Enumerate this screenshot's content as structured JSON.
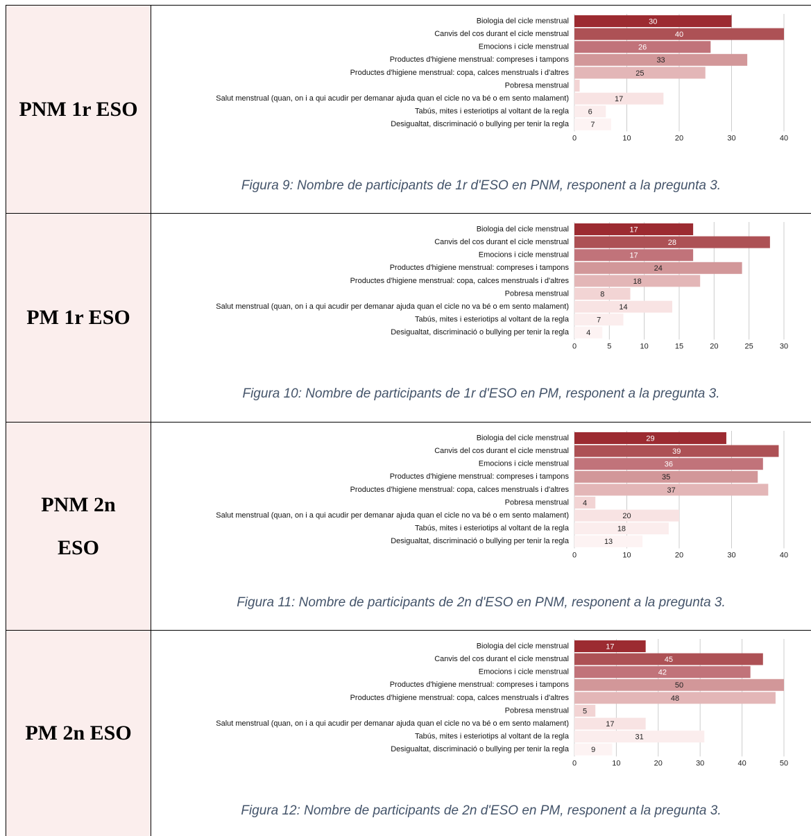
{
  "table": {
    "row_labels": [
      "PNM 1r ESO",
      "PM 1r ESO",
      "PNM 2n ESO",
      "PM 2n ESO"
    ]
  },
  "chart_data": [
    {
      "type": "bar",
      "orientation": "horizontal",
      "categories": [
        "Biologia del cicle menstrual",
        "Canvis del cos durant el cicle menstrual",
        "Emocions i cicle menstrual",
        "Productes d'higiene menstrual: compreses i tampons",
        "Productes d'higiene menstrual: copa, calces menstruals i d'altres",
        "Pobresa menstrual",
        "Salut menstrual (quan, on i a qui acudir per demanar ajuda quan el cicle no va bé o em sento malament)",
        "Tabús, mites i esteriotips al voltant de la regla",
        "Desigualtat, discriminació o bullying per tenir la regla"
      ],
      "values": [
        30,
        40,
        26,
        33,
        25,
        1,
        17,
        6,
        7
      ],
      "colors": [
        "#9c2b31",
        "#ad5155",
        "#c1737a",
        "#d29799",
        "#e3b6b7",
        "#f2d4d4",
        "#f8e3e3",
        "#fbeded",
        "#fdf3f3"
      ],
      "xlim": [
        0,
        40
      ],
      "xticks": [
        0,
        10,
        20,
        30,
        40
      ],
      "grid": true,
      "caption": "Figura 9: Nombre de participants de 1r d'ESO en PNM, responent a la pregunta 3."
    },
    {
      "type": "bar",
      "orientation": "horizontal",
      "categories": [
        "Biologia del cicle menstrual",
        "Canvis del cos durant el cicle menstrual",
        "Emocions i cicle menstrual",
        "Productes d'higiene menstrual: compreses i tampons",
        "Productes d'higiene menstrual: copa, calces menstruals i d'altres",
        "Pobresa menstrual",
        "Salut menstrual (quan, on i a qui acudir per demanar ajuda quan el cicle no va bé o em sento malament)",
        "Tabús, mites i esteriotips al voltant de la regla",
        "Desigualtat, discriminació o bullying per tenir la regla"
      ],
      "values": [
        17,
        28,
        17,
        24,
        18,
        8,
        14,
        7,
        4
      ],
      "colors": [
        "#9c2b31",
        "#ad5155",
        "#c1737a",
        "#d29799",
        "#e3b6b7",
        "#f2d4d4",
        "#f8e3e3",
        "#fbeded",
        "#fdf3f3"
      ],
      "xlim": [
        0,
        30
      ],
      "xticks": [
        0,
        5,
        10,
        15,
        20,
        25,
        30
      ],
      "grid": true,
      "caption": "Figura 10: Nombre de participants de 1r d'ESO en PM, responent a la pregunta 3."
    },
    {
      "type": "bar",
      "orientation": "horizontal",
      "categories": [
        "Biologia del cicle menstrual",
        "Canvis del cos durant el cicle menstrual",
        "Emocions i cicle menstrual",
        "Productes d'higiene menstrual: compreses i tampons",
        "Productes d'higiene menstrual: copa, calces menstruals i d'altres",
        "Pobresa menstrual",
        "Salut menstrual (quan, on i a qui acudir per demanar ajuda quan el cicle no va bé o em sento malament)",
        "Tabús, mites i esteriotips al voltant de la regla",
        "Desigualtat, discriminació o bullying per tenir la regla"
      ],
      "values": [
        29,
        39,
        36,
        35,
        37,
        4,
        20,
        18,
        13
      ],
      "colors": [
        "#9c2b31",
        "#ad5155",
        "#c1737a",
        "#d29799",
        "#e3b6b7",
        "#f2d4d4",
        "#f8e3e3",
        "#fbeded",
        "#fdf3f3"
      ],
      "xlim": [
        0,
        40
      ],
      "xticks": [
        0,
        10,
        20,
        30,
        40
      ],
      "grid": true,
      "caption": "Figura 11: Nombre de participants de 2n d'ESO en PNM, responent a la pregunta 3."
    },
    {
      "type": "bar",
      "orientation": "horizontal",
      "categories": [
        "Biologia del cicle menstrual",
        "Canvis del cos durant el cicle menstrual",
        "Emocions i cicle menstrual",
        "Productes d'higiene menstrual: compreses i tampons",
        "Productes d'higiene menstrual: copa, calces menstruals i d'altres",
        "Pobresa menstrual",
        "Salut menstrual (quan, on i a qui acudir per demanar ajuda quan el cicle no va bé o em sento malament)",
        "Tabús, mites i esteriotips al voltant de la regla",
        "Desigualtat, discriminació o bullying per tenir la regla"
      ],
      "values": [
        17,
        45,
        42,
        50,
        48,
        5,
        17,
        31,
        9
      ],
      "colors": [
        "#9c2b31",
        "#ad5155",
        "#c1737a",
        "#d29799",
        "#e3b6b7",
        "#f2d4d4",
        "#f8e3e3",
        "#fbeded",
        "#fdf3f3"
      ],
      "xlim": [
        0,
        50
      ],
      "xticks": [
        0,
        10,
        20,
        30,
        40,
        50
      ],
      "grid": true,
      "caption": "Figura 12: Nombre de participants de 2n d'ESO en PM, responent a la pregunta 3."
    }
  ]
}
